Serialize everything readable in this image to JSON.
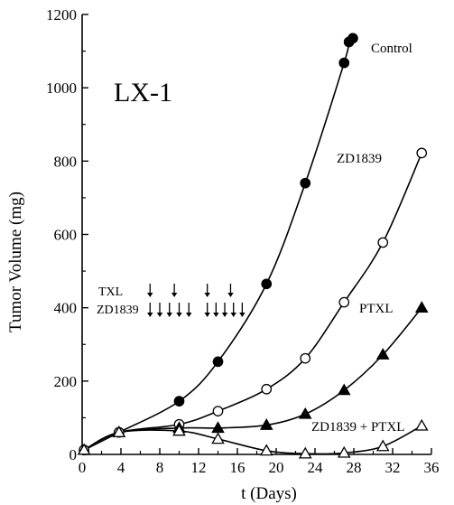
{
  "chart_data": {
    "type": "line",
    "panel_label": "LX-1",
    "xlabel": "t (Days)",
    "ylabel": "Tumor Volume (mg)",
    "xlim": [
      0,
      36
    ],
    "ylim": [
      0,
      1200
    ],
    "x_ticks": [
      0,
      4,
      8,
      12,
      16,
      20,
      24,
      28,
      32,
      36
    ],
    "y_ticks": [
      0,
      200,
      400,
      600,
      800,
      1000,
      1200
    ],
    "grid": false,
    "legend": "none",
    "series": [
      {
        "name": "Control",
        "marker": "filled-circle",
        "x": [
          0.2,
          3.8,
          10.0,
          14.0,
          19.0,
          23.0,
          27.0,
          27.5,
          27.9
        ],
        "y": [
          12,
          60,
          145,
          253,
          465,
          740,
          1068,
          1125,
          1135
        ]
      },
      {
        "name": "ZD1839",
        "marker": "open-circle",
        "x": [
          0.2,
          3.8,
          10.0,
          14.0,
          19.0,
          23.0,
          27.0,
          31.0,
          35.0
        ],
        "y": [
          12,
          60,
          82,
          118,
          178,
          262,
          415,
          578,
          822
        ]
      },
      {
        "name": "PTXL",
        "marker": "filled-triangle",
        "x": [
          0.2,
          3.8,
          10.0,
          14.0,
          19.0,
          23.0,
          27.0,
          31.0,
          35.0
        ],
        "y": [
          12,
          60,
          72,
          72,
          80,
          110,
          175,
          272,
          400
        ]
      },
      {
        "name": "ZD1839 + PTXL",
        "marker": "open-triangle",
        "x": [
          0.2,
          3.8,
          10.0,
          14.0,
          19.0,
          23.0,
          27.0,
          31.0,
          35.0
        ],
        "y": [
          12,
          60,
          64,
          42,
          10,
          2,
          4,
          22,
          78
        ]
      }
    ],
    "treatments": [
      {
        "label": "TXL",
        "days": [
          7,
          9.5,
          12.9,
          15.3
        ]
      },
      {
        "label": "ZD1839",
        "days": [
          7,
          8,
          9,
          10,
          11,
          12.9,
          13.8,
          14.7,
          15.6,
          16.5
        ]
      }
    ]
  }
}
